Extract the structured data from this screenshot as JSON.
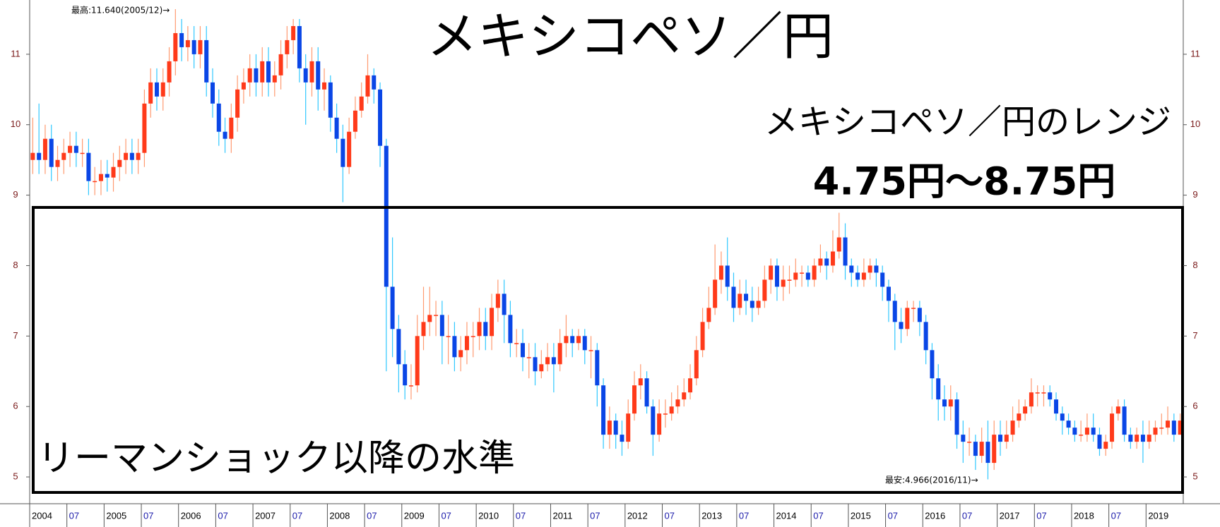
{
  "chart_data": {
    "type": "candlestick",
    "title": "メキシコペソ／円",
    "subtitle": "メキシコペソ／円のレンジ",
    "range_text": "4.75円～8.75円",
    "box_label": "リーマンショック以降の水準",
    "high_annotation": "最高:11.640(2005/12)→",
    "low_annotation": "最安:4.966(2016/11)→",
    "categories": [
      "2004",
      null,
      null,
      null,
      null,
      null,
      "07",
      null,
      null,
      null,
      null,
      null,
      "2005",
      null,
      null,
      null,
      null,
      null,
      "07",
      null,
      null,
      null,
      null,
      null,
      "2006",
      null,
      null,
      null,
      null,
      null,
      "07",
      null,
      null,
      null,
      null,
      null,
      "2007",
      null,
      null,
      null,
      null,
      null,
      "07",
      null,
      null,
      null,
      null,
      null,
      "2008",
      null,
      null,
      null,
      null,
      null,
      "07",
      null,
      null,
      null,
      null,
      null,
      "2009",
      null,
      null,
      null,
      null,
      null,
      "07",
      null,
      null,
      null,
      null,
      null,
      "2010",
      null,
      null,
      null,
      null,
      null,
      "07",
      null,
      null,
      null,
      null,
      null,
      "2011",
      null,
      null,
      null,
      null,
      null,
      "07",
      null,
      null,
      null,
      null,
      null,
      "2012",
      null,
      null,
      null,
      null,
      null,
      "07",
      null,
      null,
      null,
      null,
      null,
      "2013",
      null,
      null,
      null,
      null,
      null,
      "07",
      null,
      null,
      null,
      null,
      null,
      "2014",
      null,
      null,
      null,
      null,
      null,
      "07",
      null,
      null,
      null,
      null,
      null,
      "2015",
      null,
      null,
      null,
      null,
      null,
      "07",
      null,
      null,
      null,
      null,
      null,
      "2016",
      null,
      null,
      null,
      null,
      null,
      "07",
      null,
      null,
      null,
      null,
      null,
      "2017",
      null,
      null,
      null,
      null,
      null,
      "07",
      null,
      null,
      null,
      null,
      null,
      "2018",
      null,
      null,
      null,
      null,
      null,
      "07",
      null,
      null,
      null,
      null,
      null,
      "2019",
      null,
      null,
      null,
      null,
      null
    ],
    "open": [
      9.5,
      9.6,
      9.5,
      9.8,
      9.4,
      9.5,
      9.6,
      9.7,
      9.6,
      9.6,
      9.2,
      9.2,
      9.3,
      9.25,
      9.4,
      9.5,
      9.6,
      9.5,
      9.6,
      10.3,
      10.6,
      10.4,
      10.6,
      10.9,
      11.3,
      11.1,
      11.2,
      11.0,
      11.2,
      10.6,
      10.3,
      9.9,
      9.8,
      10.1,
      10.5,
      10.6,
      10.8,
      10.6,
      10.9,
      10.6,
      10.7,
      11.0,
      11.2,
      11.4,
      10.8,
      10.6,
      10.9,
      10.5,
      10.6,
      10.1,
      9.8,
      9.4,
      9.9,
      10.2,
      10.4,
      10.7,
      10.5,
      9.7,
      7.7,
      7.1,
      6.6,
      6.3,
      6.3,
      7.0,
      7.2,
      7.3,
      7.3,
      7.0,
      7.0,
      6.7,
      6.8,
      7.0,
      7.0,
      7.2,
      7.0,
      7.4,
      7.6,
      7.3,
      6.9,
      6.9,
      6.7,
      6.7,
      6.5,
      6.6,
      6.7,
      6.6,
      6.9,
      7.0,
      6.9,
      7.0,
      6.8,
      6.8,
      6.3,
      5.6,
      5.8,
      5.6,
      5.5,
      5.9,
      6.3,
      6.4,
      6.0,
      5.6,
      5.9,
      5.9,
      6.0,
      6.1,
      6.2,
      6.4,
      6.8,
      7.2,
      7.4,
      7.8,
      8.0,
      7.7,
      7.4,
      7.6,
      7.5,
      7.4,
      7.5,
      7.8,
      8.0,
      7.7,
      7.8,
      7.8,
      7.9,
      7.9,
      7.8,
      8.0,
      8.1,
      8.0,
      8.2,
      8.4,
      8.0,
      7.9,
      7.8,
      7.9,
      8.0,
      7.9,
      7.7,
      7.5,
      7.2,
      7.1,
      7.4,
      7.4,
      7.2,
      6.8,
      6.4,
      6.1,
      6.0,
      6.1,
      5.6,
      5.5,
      5.5,
      5.3,
      5.5,
      5.2,
      5.6,
      5.5,
      5.6,
      5.8,
      5.9,
      6.0,
      6.2,
      6.2,
      6.2,
      6.1,
      5.9,
      5.8,
      5.7,
      5.6,
      5.6,
      5.7,
      5.6,
      5.4,
      5.5,
      5.9,
      6.0,
      5.6,
      5.5,
      5.6,
      5.5,
      5.6,
      5.7,
      5.7,
      5.8,
      5.6
    ],
    "high": [
      10.1,
      10.3,
      10.0,
      10.0,
      9.7,
      9.8,
      9.9,
      9.9,
      9.8,
      9.8,
      9.4,
      9.5,
      9.5,
      9.6,
      9.7,
      9.8,
      9.8,
      9.8,
      10.5,
      10.8,
      10.8,
      10.8,
      11.1,
      11.64,
      11.5,
      11.4,
      11.4,
      11.4,
      11.4,
      10.8,
      10.5,
      10.1,
      10.3,
      10.7,
      10.8,
      11.0,
      11.0,
      11.1,
      11.1,
      10.9,
      11.2,
      11.4,
      11.5,
      11.5,
      11.0,
      11.1,
      11.1,
      10.8,
      10.7,
      10.3,
      10.0,
      10.1,
      10.4,
      10.6,
      11.0,
      10.8,
      10.6,
      9.8,
      8.4,
      7.3,
      6.8,
      6.6,
      7.3,
      7.7,
      7.7,
      7.5,
      7.5,
      7.3,
      7.2,
      7.0,
      7.2,
      7.2,
      7.4,
      7.4,
      7.6,
      7.8,
      7.8,
      7.5,
      7.1,
      7.1,
      6.9,
      6.9,
      6.8,
      6.9,
      6.9,
      7.1,
      7.3,
      7.1,
      7.1,
      7.1,
      7.0,
      6.9,
      6.4,
      6.0,
      5.9,
      5.8,
      6.1,
      6.5,
      6.6,
      6.5,
      6.1,
      6.1,
      6.1,
      6.2,
      6.3,
      6.4,
      6.6,
      7.0,
      7.4,
      7.7,
      8.3,
      8.2,
      8.4,
      7.9,
      7.8,
      7.8,
      7.7,
      7.7,
      8.0,
      8.1,
      8.1,
      8.0,
      8.0,
      8.1,
      8.0,
      8.0,
      8.1,
      8.3,
      8.2,
      8.5,
      8.75,
      8.6,
      8.1,
      8.0,
      8.1,
      8.1,
      8.1,
      8.0,
      7.8,
      7.6,
      7.4,
      7.5,
      7.5,
      7.5,
      7.3,
      6.9,
      6.6,
      6.3,
      6.3,
      6.2,
      5.8,
      5.7,
      5.6,
      5.7,
      5.8,
      5.8,
      5.8,
      5.8,
      6.0,
      6.1,
      6.1,
      6.4,
      6.3,
      6.3,
      6.3,
      6.2,
      6.0,
      5.9,
      5.8,
      5.8,
      5.9,
      5.9,
      5.7,
      5.6,
      6.0,
      6.1,
      6.1,
      5.7,
      5.7,
      5.8,
      5.8,
      5.8,
      5.9,
      6.0,
      5.9,
      5.9
    ],
    "low": [
      9.3,
      9.3,
      9.3,
      9.2,
      9.2,
      9.3,
      9.4,
      9.4,
      9.4,
      9.0,
      9.0,
      9.0,
      9.05,
      9.05,
      9.2,
      9.3,
      9.3,
      9.3,
      9.4,
      10.1,
      10.2,
      10.2,
      10.4,
      10.7,
      10.9,
      10.9,
      10.8,
      10.8,
      10.4,
      10.1,
      9.7,
      9.6,
      9.6,
      9.9,
      10.3,
      10.4,
      10.4,
      10.4,
      10.4,
      10.4,
      10.5,
      10.8,
      11.0,
      10.6,
      10.0,
      10.4,
      10.2,
      10.2,
      9.9,
      9.6,
      8.9,
      9.3,
      9.8,
      10.1,
      10.3,
      10.3,
      9.4,
      6.5,
      6.7,
      6.2,
      6.1,
      6.1,
      6.2,
      6.8,
      7.0,
      7.0,
      6.6,
      6.6,
      6.5,
      6.5,
      6.6,
      6.7,
      6.8,
      6.8,
      6.8,
      7.2,
      6.9,
      6.7,
      6.7,
      6.5,
      6.4,
      6.3,
      6.4,
      6.5,
      6.2,
      6.5,
      6.7,
      6.7,
      6.8,
      6.6,
      6.4,
      6.0,
      5.4,
      5.4,
      5.4,
      5.3,
      5.4,
      5.8,
      6.1,
      5.9,
      5.3,
      5.5,
      5.7,
      5.8,
      5.9,
      6.0,
      6.1,
      6.3,
      6.7,
      7.1,
      7.3,
      7.6,
      7.5,
      7.2,
      7.3,
      7.3,
      7.2,
      7.3,
      7.4,
      7.6,
      7.5,
      7.5,
      7.6,
      7.7,
      7.7,
      7.7,
      7.7,
      7.9,
      7.8,
      7.9,
      8.1,
      7.8,
      7.7,
      7.7,
      7.7,
      7.8,
      7.7,
      7.5,
      7.2,
      6.8,
      6.9,
      7.0,
      7.2,
      7.0,
      6.6,
      6.1,
      5.8,
      5.8,
      5.8,
      5.4,
      5.2,
      5.3,
      5.1,
      5.2,
      4.966,
      5.1,
      5.3,
      5.4,
      5.5,
      5.7,
      5.8,
      5.9,
      6.0,
      6.0,
      6.0,
      5.8,
      5.6,
      5.6,
      5.5,
      5.5,
      5.5,
      5.5,
      5.3,
      5.3,
      5.4,
      5.8,
      5.5,
      5.4,
      5.4,
      5.2,
      5.4,
      5.5,
      5.6,
      5.6,
      5.5,
      5.6
    ],
    "close": [
      9.6,
      9.5,
      9.8,
      9.4,
      9.5,
      9.6,
      9.7,
      9.6,
      9.6,
      9.2,
      9.2,
      9.3,
      9.25,
      9.4,
      9.5,
      9.6,
      9.5,
      9.6,
      10.3,
      10.6,
      10.4,
      10.6,
      10.9,
      11.3,
      11.1,
      11.2,
      11.0,
      11.2,
      10.6,
      10.3,
      9.9,
      9.8,
      10.1,
      10.5,
      10.6,
      10.8,
      10.6,
      10.9,
      10.6,
      10.7,
      11.0,
      11.2,
      11.4,
      10.8,
      10.6,
      10.9,
      10.5,
      10.6,
      10.1,
      9.8,
      9.4,
      9.9,
      10.2,
      10.4,
      10.7,
      10.5,
      9.7,
      7.7,
      7.1,
      6.6,
      6.3,
      6.3,
      7.0,
      7.2,
      7.3,
      7.3,
      7.0,
      7.0,
      6.7,
      6.8,
      7.0,
      7.0,
      7.2,
      7.0,
      7.4,
      7.6,
      7.3,
      6.9,
      6.9,
      6.7,
      6.7,
      6.5,
      6.6,
      6.7,
      6.6,
      6.9,
      7.0,
      6.9,
      7.0,
      6.8,
      6.8,
      6.3,
      5.6,
      5.8,
      5.6,
      5.5,
      5.9,
      6.3,
      6.4,
      6.0,
      5.6,
      5.9,
      5.9,
      6.0,
      6.1,
      6.2,
      6.4,
      6.8,
      7.2,
      7.4,
      7.8,
      8.0,
      7.7,
      7.4,
      7.6,
      7.5,
      7.4,
      7.5,
      7.8,
      8.0,
      7.7,
      7.8,
      7.8,
      7.9,
      7.9,
      7.8,
      8.0,
      8.1,
      8.0,
      8.2,
      8.4,
      8.0,
      7.9,
      7.8,
      7.9,
      8.0,
      7.9,
      7.7,
      7.5,
      7.2,
      7.1,
      7.4,
      7.4,
      7.2,
      6.8,
      6.4,
      6.1,
      6.0,
      6.1,
      5.6,
      5.5,
      5.5,
      5.3,
      5.5,
      5.2,
      5.6,
      5.5,
      5.6,
      5.8,
      5.9,
      6.0,
      6.2,
      6.2,
      6.2,
      6.1,
      5.9,
      5.8,
      5.7,
      5.6,
      5.6,
      5.7,
      5.6,
      5.4,
      5.5,
      5.9,
      6.0,
      5.6,
      5.5,
      5.6,
      5.5,
      5.6,
      5.7,
      5.7,
      5.8,
      5.6,
      5.8
    ],
    "up_color": "#ff3a1a",
    "down_color": "#0a46e6",
    "up_wick_color": "#ff9a70",
    "down_wick_color": "#30c8ff",
    "ylim": [
      4.62,
      11.77
    ],
    "yticks": [
      5,
      6,
      7,
      8,
      9,
      10,
      11
    ]
  }
}
